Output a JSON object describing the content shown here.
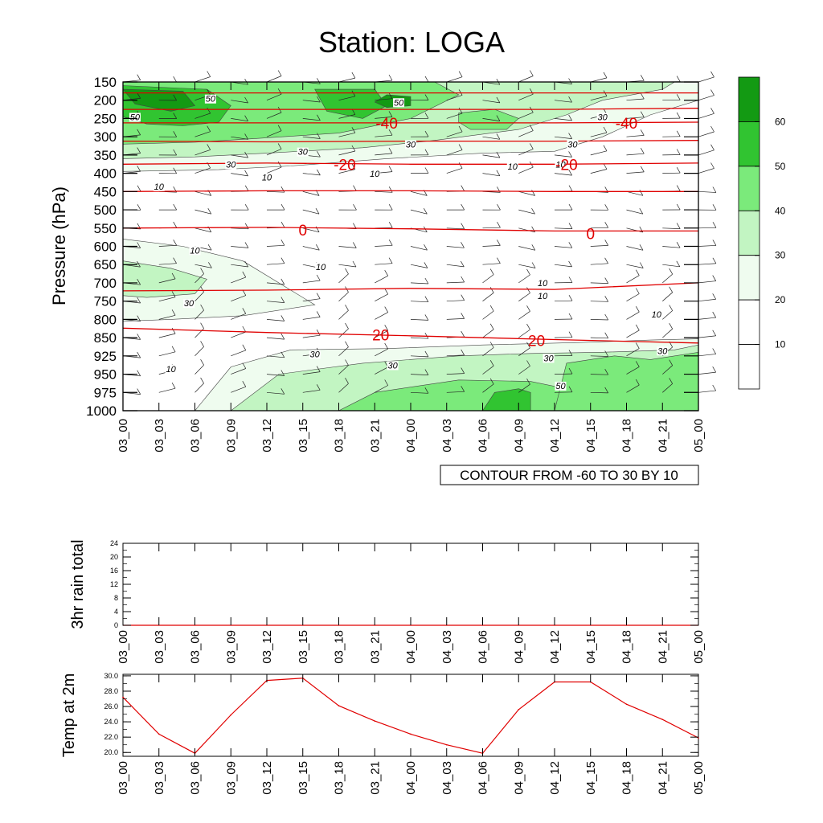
{
  "title": "Station: LOGA",
  "info_box": "CONTOUR FROM -60 TO 30 BY 10",
  "colors": {
    "temp_line": "#e00000",
    "levels": [
      "#ffffff",
      "#ffffff",
      "#effcef",
      "#c2f5c2",
      "#7bea7b",
      "#31c431",
      "#139a13"
    ]
  },
  "chart_data": [
    {
      "type": "contour",
      "name": "upper_air",
      "title": "Station: LOGA",
      "ylabel": "Pressure (hPa)",
      "y_ticks": [
        "150",
        "200",
        "250",
        "300",
        "350",
        "400",
        "450",
        "500",
        "550",
        "600",
        "650",
        "700",
        "750",
        "800",
        "850",
        "925",
        "950",
        "975",
        "1000"
      ],
      "x_ticks": [
        "03_00",
        "03_03",
        "03_06",
        "03_09",
        "03_12",
        "03_15",
        "03_18",
        "03_21",
        "04_00",
        "04_03",
        "04_06",
        "04_09",
        "04_12",
        "04_15",
        "04_18",
        "04_21",
        "05_00"
      ],
      "colorbar": {
        "labels": [
          "10",
          "20",
          "30",
          "40",
          "50",
          "60"
        ],
        "bins": 7
      },
      "wind_speed_labels": [
        {
          "text": "50",
          "x": 1,
          "y": 250
        },
        {
          "text": "50",
          "x": 7.3,
          "y": 200
        },
        {
          "text": "50",
          "x": 23,
          "y": 210
        },
        {
          "text": "30",
          "x": 40,
          "y": 250
        },
        {
          "text": "30",
          "x": 24,
          "y": 325
        },
        {
          "text": "30",
          "x": 37.5,
          "y": 325
        },
        {
          "text": "30",
          "x": 15,
          "y": 345
        },
        {
          "text": "30",
          "x": 9,
          "y": 380
        },
        {
          "text": "10",
          "x": 36.5,
          "y": 380
        },
        {
          "text": "10",
          "x": 32.5,
          "y": 385
        },
        {
          "text": "10",
          "x": 21,
          "y": 405
        },
        {
          "text": "10",
          "x": 12,
          "y": 415
        },
        {
          "text": "10",
          "x": 3,
          "y": 440
        },
        {
          "text": "10",
          "x": 6,
          "y": 615
        },
        {
          "text": "10",
          "x": 16.5,
          "y": 660
        },
        {
          "text": "10",
          "x": 35,
          "y": 705
        },
        {
          "text": "10",
          "x": 35,
          "y": 740
        },
        {
          "text": "30",
          "x": 5.5,
          "y": 760
        },
        {
          "text": "10",
          "x": 44.5,
          "y": 790
        },
        {
          "text": "30",
          "x": 45,
          "y": 910
        },
        {
          "text": "30",
          "x": 16,
          "y": 924
        },
        {
          "text": "30",
          "x": 35.5,
          "y": 930
        },
        {
          "text": "30",
          "x": 22.5,
          "y": 940
        },
        {
          "text": "10",
          "x": 4,
          "y": 945
        },
        {
          "text": "50",
          "x": 36.5,
          "y": 968
        }
      ],
      "temperature_labels": [
        {
          "text": "-40",
          "x": 22,
          "y": 262
        },
        {
          "text": "-40",
          "x": 42,
          "y": 262
        },
        {
          "text": "-20",
          "x": 18.5,
          "y": 375
        },
        {
          "text": "-20",
          "x": 37,
          "y": 375
        },
        {
          "text": "0",
          "x": 15,
          "y": 555
        },
        {
          "text": "0",
          "x": 39,
          "y": 565
        },
        {
          "text": "20",
          "x": 21.5,
          "y": 842
        },
        {
          "text": "20",
          "x": 34.5,
          "y": 862
        }
      ],
      "temperature_isolines": [
        {
          "p": [
            180,
            180,
            180,
            180,
            180
          ]
        },
        {
          "p": [
            225,
            225,
            225,
            225,
            222
          ]
        },
        {
          "p": [
            262,
            262,
            262,
            262,
            260
          ]
        },
        {
          "p": [
            312,
            314,
            312,
            312,
            310
          ]
        },
        {
          "p": [
            375,
            372,
            375,
            375,
            372
          ]
        },
        {
          "p": [
            450,
            448,
            448,
            450,
            450
          ]
        },
        {
          "p": [
            550,
            548,
            552,
            558,
            558
          ]
        },
        {
          "p": [
            722,
            720,
            715,
            718,
            700
          ]
        },
        {
          "p": [
            824,
            836,
            845,
            858,
            872
          ]
        }
      ]
    },
    {
      "type": "line",
      "name": "rain",
      "ylabel": "3hr rain total",
      "ylim": [
        0,
        24
      ],
      "y_ticks": [
        "0",
        "4",
        "8",
        "12",
        "16",
        "20",
        "24"
      ],
      "x": [
        "03_00",
        "03_03",
        "03_06",
        "03_09",
        "03_12",
        "03_15",
        "03_18",
        "03_21",
        "04_00",
        "04_03",
        "04_06",
        "04_09",
        "04_12",
        "04_15",
        "04_18",
        "04_21",
        "05_00"
      ],
      "values": [
        0,
        0,
        0,
        0,
        0,
        0,
        0,
        0,
        0,
        0,
        0,
        0,
        0,
        0,
        0,
        0,
        0
      ]
    },
    {
      "type": "line",
      "name": "temp2m",
      "ylabel": "Temp at 2m",
      "ylim": [
        19.5,
        30.2
      ],
      "y_ticks": [
        "20.0",
        "22.0",
        "24.0",
        "26.0",
        "28.0",
        "30.0"
      ],
      "x": [
        "03_00",
        "03_03",
        "03_06",
        "03_09",
        "03_12",
        "03_15",
        "03_18",
        "03_21",
        "04_00",
        "04_03",
        "04_06",
        "04_09",
        "04_12",
        "04_15",
        "04_18",
        "04_21",
        "05_00"
      ],
      "values": [
        27.2,
        22.4,
        19.9,
        24.9,
        29.4,
        29.7,
        26.1,
        24.1,
        22.4,
        21.0,
        19.9,
        25.6,
        29.2,
        29.2,
        26.3,
        24.3,
        21.9
      ]
    }
  ]
}
